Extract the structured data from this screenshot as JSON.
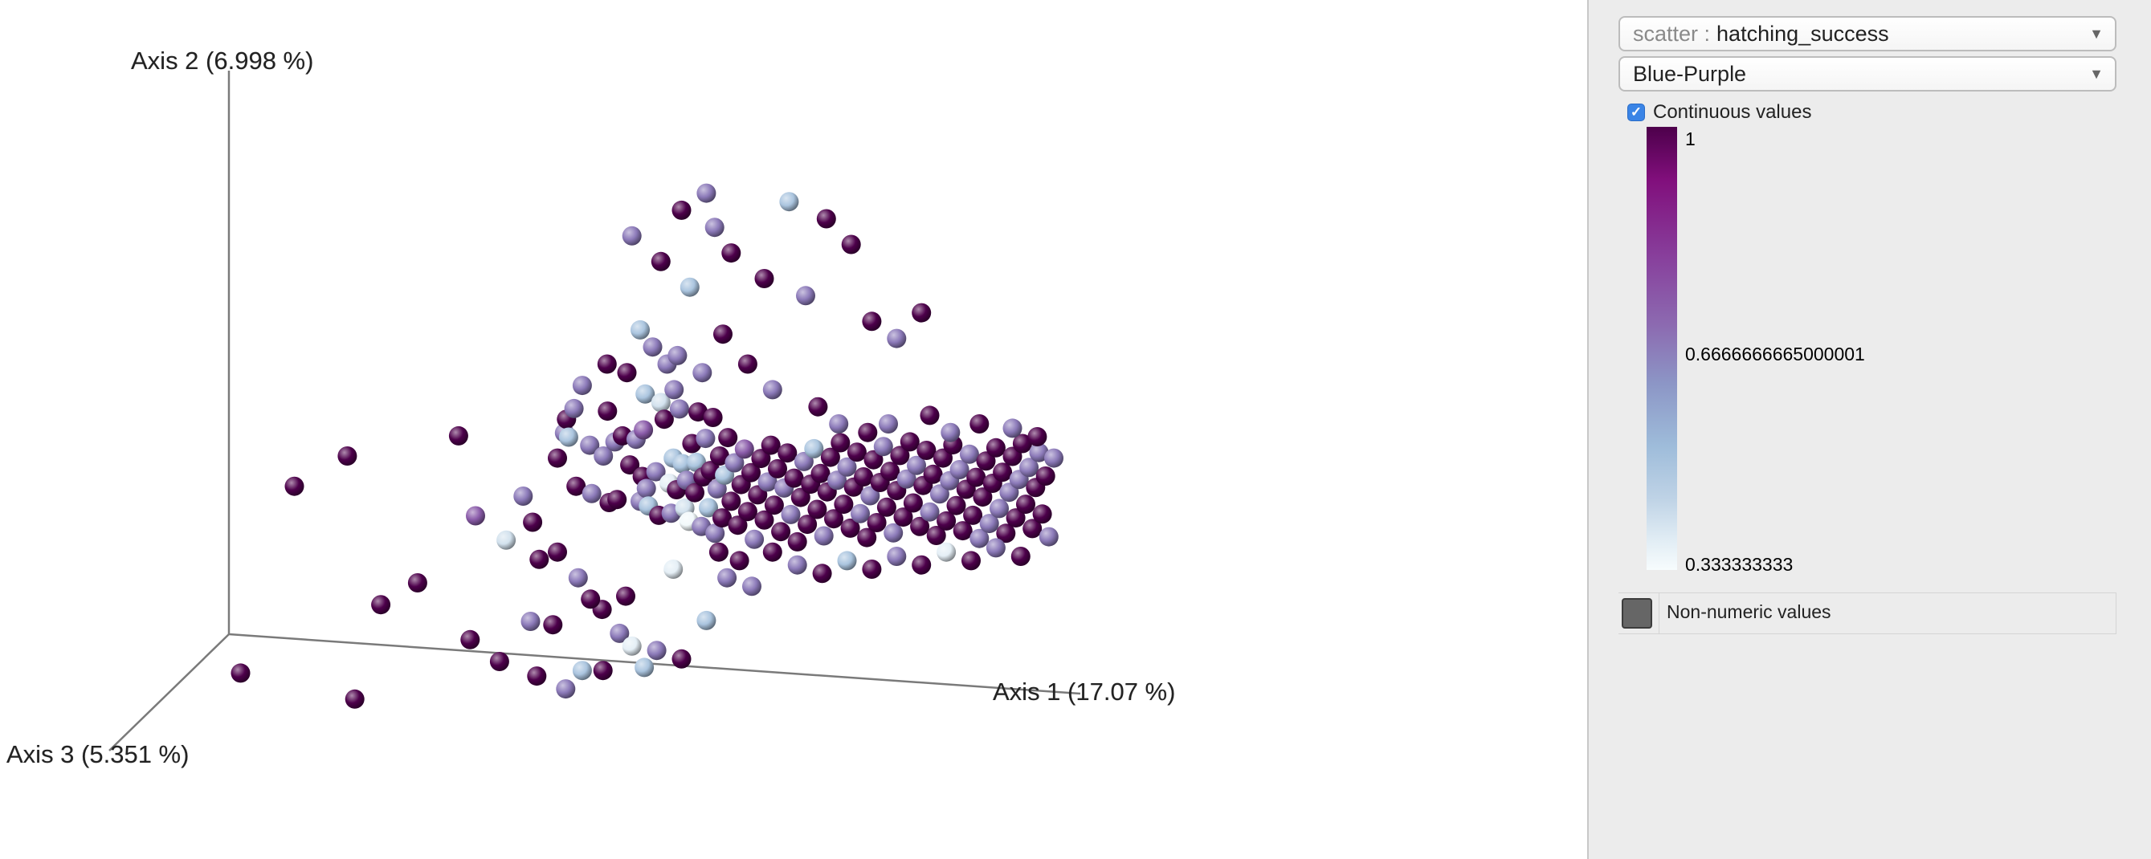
{
  "chart_data": {
    "type": "scatter",
    "title": "",
    "axes": {
      "x": "Axis 1 (17.07 %)",
      "y": "Axis 2 (6.998 %)",
      "z": "Axis 3 (5.351 %)"
    },
    "color_variable": "hatching_success",
    "color_scale": "Blue-Purple",
    "color_range": [
      0.333333333,
      1
    ],
    "colors": {
      "stops": [
        "#4d004b",
        "#810f7c",
        "#88419d",
        "#8c6bb1",
        "#8c96c6",
        "#9ebcda",
        "#bfd3e6",
        "#e0ecf4",
        "#f7fcfd"
      ],
      "non_numeric": "#666666"
    },
    "points": [
      [
        -0.966,
        -0.203,
        1.0
      ],
      [
        -0.836,
        0.234,
        1.0
      ],
      [
        -0.708,
        0.305,
        1.0
      ],
      [
        -0.627,
        -0.043,
        1.0
      ],
      [
        -0.69,
        -0.264,
        1.0
      ],
      [
        -0.538,
        0.008,
        1.0
      ],
      [
        -0.439,
        0.352,
        1.0
      ],
      [
        -0.411,
        -0.125,
        1.0
      ],
      [
        -0.398,
        0.165,
        0.78
      ],
      [
        -0.324,
        0.108,
        0.45
      ],
      [
        -0.283,
        0.211,
        0.72
      ],
      [
        -0.265,
        -0.082,
        0.72
      ],
      [
        -0.244,
        0.063,
        1.0
      ],
      [
        -0.211,
        -0.09,
        1.0
      ],
      [
        -0.2,
        0.3,
        1.0
      ],
      [
        -0.183,
        0.359,
        0.72
      ],
      [
        -0.178,
        0.391,
        1.0
      ],
      [
        -0.173,
        0.349,
        0.55
      ],
      [
        -0.16,
        0.416,
        0.72
      ],
      [
        -0.155,
        0.234,
        1.0
      ],
      [
        -0.122,
        0.33,
        0.72
      ],
      [
        -0.117,
        0.217,
        0.72
      ],
      [
        -0.092,
        -0.054,
        1.0
      ],
      [
        -0.089,
        0.305,
        0.72
      ],
      [
        -0.075,
        0.196,
        1.0
      ],
      [
        -0.079,
        0.41,
        1.0
      ],
      [
        -0.061,
        0.338,
        0.72
      ],
      [
        -0.056,
        0.203,
        1.0
      ],
      [
        -0.043,
        0.352,
        1.0
      ],
      [
        -0.032,
        0.5,
        1.0
      ],
      [
        -0.035,
        -0.023,
        1.0
      ],
      [
        -0.025,
        0.284,
        1.0
      ],
      [
        -0.01,
        0.344,
        0.72
      ],
      [
        0.0,
        0.199,
        0.72
      ],
      [
        0.005,
        0.257,
        1.0
      ],
      [
        0.008,
        0.366,
        0.78
      ],
      [
        0.015,
        0.229,
        0.72
      ],
      [
        0.02,
        0.188,
        0.55
      ],
      [
        0.012,
        0.45,
        0.55
      ],
      [
        0.03,
        0.56,
        0.72
      ],
      [
        0.038,
        0.268,
        0.72
      ],
      [
        0.045,
        0.166,
        1.0
      ],
      [
        0.05,
        0.43,
        0.45
      ],
      [
        0.058,
        0.391,
        1.0
      ],
      [
        0.065,
        0.52,
        0.72
      ],
      [
        0.07,
        0.241,
        0.4
      ],
      [
        0.075,
        0.171,
        0.72
      ],
      [
        0.08,
        0.3,
        0.55
      ],
      [
        0.082,
        0.46,
        0.72
      ],
      [
        0.088,
        0.226,
        1.0
      ],
      [
        0.095,
        0.415,
        0.72
      ],
      [
        0.102,
        0.287,
        0.55
      ],
      [
        0.108,
        0.183,
        0.45
      ],
      [
        0.112,
        0.248,
        0.72
      ],
      [
        0.118,
        0.152,
        0.35
      ],
      [
        0.125,
        0.334,
        1.0
      ],
      [
        0.132,
        0.219,
        1.0
      ],
      [
        0.136,
        0.29,
        0.55
      ],
      [
        0.14,
        0.408,
        1.0
      ],
      [
        0.148,
        0.14,
        0.72
      ],
      [
        0.152,
        0.256,
        1.0
      ],
      [
        0.158,
        0.346,
        0.72
      ],
      [
        0.165,
        0.184,
        0.55
      ],
      [
        0.17,
        0.271,
        1.0
      ],
      [
        0.176,
        0.395,
        1.0
      ],
      [
        0.181,
        0.124,
        0.72
      ],
      [
        0.186,
        0.228,
        0.72
      ],
      [
        0.192,
        0.305,
        1.0
      ],
      [
        0.198,
        0.16,
        1.0
      ],
      [
        0.204,
        0.26,
        0.55
      ],
      [
        0.212,
        0.348,
        1.0
      ],
      [
        0.22,
        0.199,
        1.0
      ],
      [
        0.228,
        0.289,
        0.72
      ],
      [
        0.236,
        0.143,
        1.0
      ],
      [
        0.244,
        0.238,
        1.0
      ],
      [
        0.252,
        0.321,
        0.78
      ],
      [
        0.26,
        0.175,
        1.0
      ],
      [
        0.268,
        0.266,
        1.0
      ],
      [
        0.276,
        0.11,
        0.72
      ],
      [
        0.284,
        0.214,
        1.0
      ],
      [
        0.292,
        0.299,
        1.0
      ],
      [
        0.3,
        0.155,
        1.0
      ],
      [
        0.308,
        0.244,
        0.72
      ],
      [
        0.316,
        0.33,
        1.0
      ],
      [
        0.324,
        0.19,
        1.0
      ],
      [
        0.332,
        0.275,
        1.0
      ],
      [
        0.34,
        0.128,
        1.0
      ],
      [
        0.348,
        0.23,
        0.72
      ],
      [
        0.356,
        0.312,
        1.0
      ],
      [
        0.364,
        0.168,
        0.72
      ],
      [
        0.372,
        0.253,
        1.0
      ],
      [
        0.38,
        0.104,
        1.0
      ],
      [
        0.388,
        0.208,
        1.0
      ],
      [
        0.396,
        0.292,
        0.72
      ],
      [
        0.404,
        0.145,
        1.0
      ],
      [
        0.412,
        0.239,
        1.0
      ],
      [
        0.42,
        0.322,
        0.55
      ],
      [
        0.428,
        0.18,
        1.0
      ],
      [
        0.436,
        0.264,
        1.0
      ],
      [
        0.444,
        0.118,
        0.72
      ],
      [
        0.452,
        0.221,
        1.0
      ],
      [
        0.46,
        0.302,
        1.0
      ],
      [
        0.468,
        0.158,
        1.0
      ],
      [
        0.476,
        0.248,
        0.72
      ],
      [
        0.484,
        0.336,
        1.0
      ],
      [
        0.492,
        0.192,
        1.0
      ],
      [
        0.5,
        0.279,
        0.72
      ],
      [
        0.508,
        0.136,
        1.0
      ],
      [
        0.516,
        0.232,
        1.0
      ],
      [
        0.524,
        0.314,
        1.0
      ],
      [
        0.532,
        0.17,
        0.72
      ],
      [
        0.54,
        0.256,
        1.0
      ],
      [
        0.548,
        0.114,
        1.0
      ],
      [
        0.556,
        0.212,
        0.72
      ],
      [
        0.564,
        0.296,
        1.0
      ],
      [
        0.572,
        0.149,
        1.0
      ],
      [
        0.58,
        0.243,
        1.0
      ],
      [
        0.588,
        0.327,
        0.72
      ],
      [
        0.596,
        0.185,
        1.0
      ],
      [
        0.604,
        0.269,
        1.0
      ],
      [
        0.612,
        0.125,
        0.72
      ],
      [
        0.62,
        0.224,
        1.0
      ],
      [
        0.628,
        0.306,
        1.0
      ],
      [
        0.636,
        0.162,
        1.0
      ],
      [
        0.644,
        0.251,
        0.72
      ],
      [
        0.652,
        0.338,
        1.0
      ],
      [
        0.66,
        0.195,
        1.0
      ],
      [
        0.668,
        0.283,
        0.72
      ],
      [
        0.676,
        0.14,
        1.0
      ],
      [
        0.684,
        0.236,
        1.0
      ],
      [
        0.692,
        0.318,
        1.0
      ],
      [
        0.7,
        0.174,
        0.72
      ],
      [
        0.708,
        0.262,
        1.0
      ],
      [
        0.716,
        0.119,
        1.0
      ],
      [
        0.724,
        0.216,
        0.72
      ],
      [
        0.732,
        0.3,
        1.0
      ],
      [
        0.74,
        0.153,
        1.0
      ],
      [
        0.748,
        0.247,
        0.72
      ],
      [
        0.756,
        0.331,
        1.0
      ],
      [
        0.764,
        0.189,
        1.0
      ],
      [
        0.772,
        0.273,
        0.72
      ],
      [
        0.78,
        0.13,
        1.0
      ],
      [
        0.788,
        0.227,
        1.0
      ],
      [
        0.796,
        0.309,
        0.72
      ],
      [
        0.804,
        0.166,
        1.0
      ],
      [
        0.812,
        0.255,
        1.0
      ],
      [
        0.82,
        0.112,
        0.72
      ],
      [
        0.828,
        0.209,
        1.0
      ],
      [
        0.836,
        0.293,
        1.0
      ],
      [
        0.844,
        0.147,
        0.72
      ],
      [
        0.852,
        0.241,
        1.0
      ],
      [
        0.86,
        0.324,
        1.0
      ],
      [
        0.868,
        0.182,
        0.72
      ],
      [
        0.876,
        0.267,
        1.0
      ],
      [
        0.884,
        0.124,
        1.0
      ],
      [
        0.892,
        0.22,
        0.72
      ],
      [
        0.9,
        0.304,
        1.0
      ],
      [
        0.908,
        0.16,
        1.0
      ],
      [
        0.916,
        0.25,
        0.72
      ],
      [
        0.924,
        0.334,
        1.0
      ],
      [
        0.932,
        0.192,
        1.0
      ],
      [
        0.94,
        0.278,
        0.72
      ],
      [
        0.948,
        0.135,
        1.0
      ],
      [
        0.956,
        0.231,
        1.0
      ],
      [
        0.964,
        0.313,
        0.72
      ],
      [
        0.972,
        0.169,
        1.0
      ],
      [
        0.98,
        0.258,
        1.0
      ],
      [
        0.988,
        0.116,
        0.72
      ],
      [
        -0.26,
        0.15,
        1.0
      ],
      [
        -0.2,
        0.08,
        1.0
      ],
      [
        -0.15,
        0.02,
        0.72
      ],
      [
        -0.12,
        -0.03,
        1.0
      ],
      [
        -0.05,
        -0.11,
        0.72
      ],
      [
        -0.02,
        -0.14,
        0.4
      ],
      [
        0.01,
        -0.19,
        0.55
      ],
      [
        -0.34,
        -0.176,
        1.0
      ],
      [
        -0.25,
        -0.21,
        1.0
      ],
      [
        -0.18,
        -0.24,
        0.72
      ],
      [
        -0.14,
        -0.197,
        0.55
      ],
      [
        -0.09,
        -0.197,
        1.0
      ],
      [
        0.04,
        -0.15,
        0.72
      ],
      [
        0.1,
        -0.17,
        1.0
      ],
      [
        0.16,
        -0.08,
        0.55
      ],
      [
        0.08,
        0.04,
        0.4
      ],
      [
        0.19,
        0.08,
        1.0
      ],
      [
        0.21,
        0.02,
        0.72
      ],
      [
        0.24,
        0.06,
        1.0
      ],
      [
        0.27,
        0.0,
        0.72
      ],
      [
        0.15,
        0.5,
        0.72
      ],
      [
        0.2,
        0.59,
        1.0
      ],
      [
        0.26,
        0.52,
        1.0
      ],
      [
        0.32,
        0.46,
        0.72
      ],
      [
        0.09,
        0.54,
        0.72
      ],
      [
        0.0,
        0.6,
        0.55
      ],
      [
        -0.08,
        0.52,
        1.0
      ],
      [
        -0.14,
        0.47,
        0.72
      ],
      [
        0.43,
        0.42,
        1.0
      ],
      [
        0.48,
        0.38,
        0.72
      ],
      [
        0.55,
        0.36,
        1.0
      ],
      [
        0.6,
        0.38,
        0.72
      ],
      [
        0.7,
        0.4,
        1.0
      ],
      [
        0.75,
        0.36,
        0.72
      ],
      [
        0.82,
        0.38,
        1.0
      ],
      [
        0.9,
        0.37,
        0.72
      ],
      [
        0.96,
        0.35,
        1.0
      ],
      [
        1.0,
        0.3,
        0.72
      ],
      [
        0.32,
        0.08,
        1.0
      ],
      [
        0.38,
        0.05,
        0.72
      ],
      [
        0.44,
        0.03,
        1.0
      ],
      [
        0.5,
        0.06,
        0.55
      ],
      [
        0.56,
        0.04,
        1.0
      ],
      [
        0.62,
        0.07,
        0.72
      ],
      [
        0.68,
        0.05,
        1.0
      ],
      [
        0.74,
        0.08,
        0.4
      ],
      [
        0.8,
        0.06,
        1.0
      ],
      [
        0.86,
        0.09,
        0.72
      ],
      [
        0.92,
        0.07,
        1.0
      ],
      [
        0.56,
        0.62,
        1.0
      ],
      [
        0.62,
        0.58,
        0.72
      ],
      [
        0.68,
        0.64,
        1.0
      ],
      [
        0.4,
        0.68,
        0.72
      ],
      [
        0.3,
        0.72,
        1.0
      ],
      [
        0.22,
        0.78,
        1.0
      ],
      [
        0.18,
        0.84,
        0.72
      ],
      [
        0.12,
        0.7,
        0.55
      ],
      [
        0.05,
        0.76,
        1.0
      ],
      [
        -0.02,
        0.82,
        0.72
      ],
      [
        0.1,
        0.88,
        1.0
      ],
      [
        0.16,
        0.92,
        0.72
      ],
      [
        0.45,
        0.86,
        1.0
      ],
      [
        0.51,
        0.8,
        1.0
      ],
      [
        0.36,
        0.9,
        0.55
      ]
    ]
  },
  "panel": {
    "scatter_prefix": "scatter :",
    "scatter_value": "hatching_success",
    "colormap_value": "Blue-Purple",
    "continuous_label": "Continuous values",
    "legend_max": "1",
    "legend_mid": "0.6666666665000001",
    "legend_min": "0.333333333",
    "nonnumeric_label": "Non-numeric values"
  }
}
